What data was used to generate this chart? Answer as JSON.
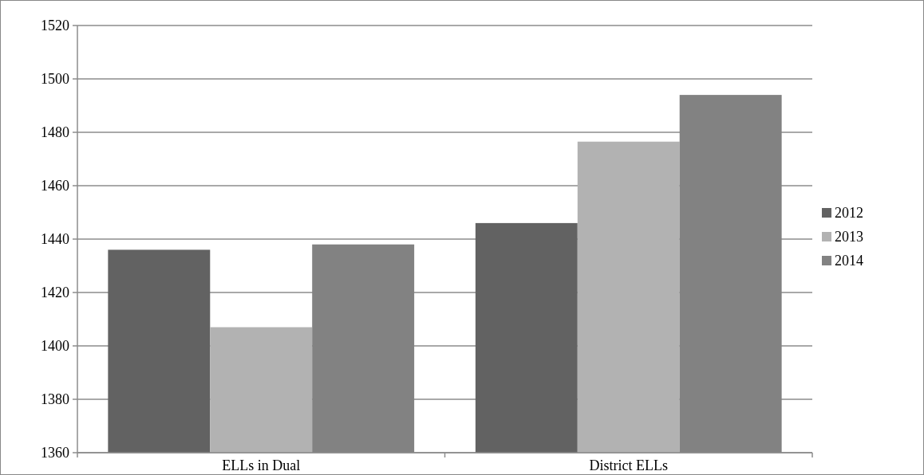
{
  "chart_data": {
    "type": "bar",
    "categories": [
      "ELLs in Dual",
      "District ELLs"
    ],
    "series": [
      {
        "name": "2012",
        "color": "#626262",
        "values": [
          1436,
          1446
        ]
      },
      {
        "name": "2013",
        "color": "#b2b2b2",
        "values": [
          1407,
          1476.5
        ]
      },
      {
        "name": "2014",
        "color": "#828282",
        "values": [
          1438,
          1494
        ]
      }
    ],
    "ylim": [
      1360,
      1520
    ],
    "yticks": [
      1360,
      1380,
      1400,
      1420,
      1440,
      1460,
      1480,
      1500,
      1520
    ],
    "grid": "y",
    "legend": "right"
  }
}
